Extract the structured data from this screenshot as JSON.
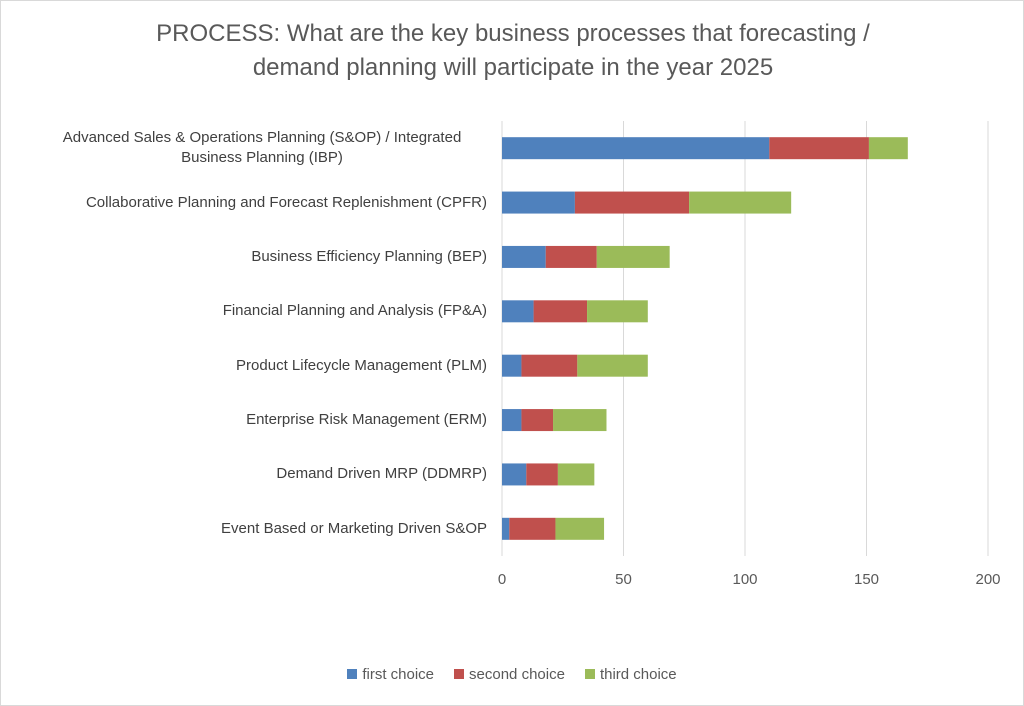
{
  "chart_data": {
    "type": "stacked_bar_horizontal",
    "title": "PROCESS: What are the key business processes that forecasting / demand planning will participate in the year 2025",
    "categories": [
      "Advanced Sales & Operations Planning (S&OP) / Integrated Business Planning (IBP)",
      "Collaborative Planning and Forecast Replenishment (CPFR)",
      "Business Efficiency Planning (BEP)",
      "Financial Planning and Analysis (FP&A)",
      "Product Lifecycle Management (PLM)",
      "Enterprise Risk Management (ERM)",
      "Demand Driven MRP (DDMRP)",
      "Event Based or Marketing Driven S&OP"
    ],
    "series": [
      {
        "name": "first choice",
        "color": "#4f81bd",
        "values": [
          110,
          30,
          18,
          13,
          8,
          8,
          10,
          3
        ]
      },
      {
        "name": "second choice",
        "color": "#c0504d",
        "values": [
          41,
          47,
          21,
          22,
          23,
          13,
          13,
          19
        ]
      },
      {
        "name": "third choice",
        "color": "#9bbb59",
        "values": [
          16,
          42,
          30,
          25,
          29,
          22,
          15,
          20
        ]
      }
    ],
    "xlim": [
      0,
      200
    ],
    "xticks": [
      0,
      50,
      100,
      150,
      200
    ],
    "grid": true,
    "legend": "bottom"
  }
}
